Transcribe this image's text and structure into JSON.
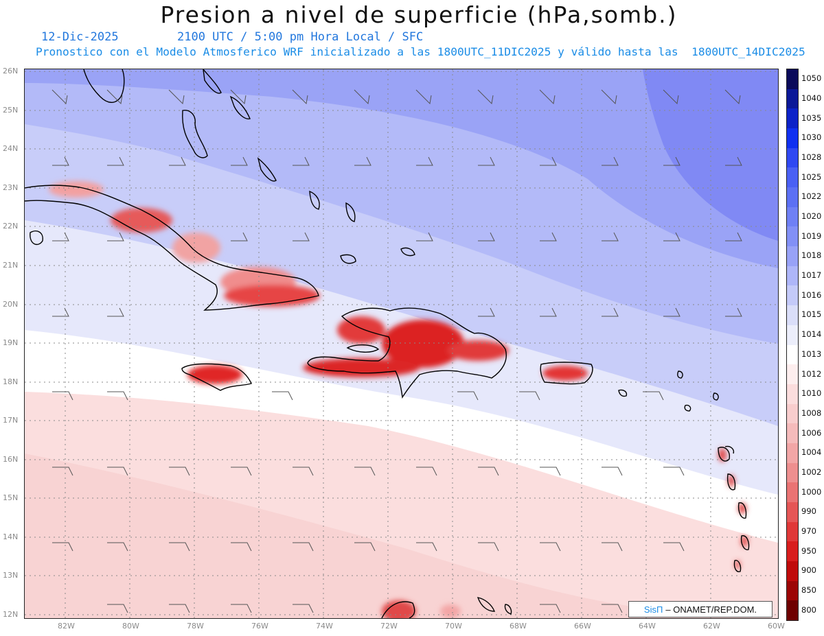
{
  "header": {
    "title": "Presion a nivel de superficie (hPa,somb.)",
    "date": "12-Dic-2025",
    "time": "2100 UTC / 5:00 pm Hora Local / SFC",
    "forecast_note": "Pronostico con el Modelo Atmosferico WRF inicializado a las 1800UTC_11DIC2025 y válido hasta las  1800UTC_14DIC2025"
  },
  "axes": {
    "lon_labels": [
      "82W",
      "80W",
      "78W",
      "76W",
      "74W",
      "72W",
      "70W",
      "68W",
      "66W",
      "64W",
      "62W",
      "60W"
    ],
    "lat_labels": [
      "26N",
      "25N",
      "24N",
      "23N",
      "22N",
      "21N",
      "20N",
      "19N",
      "18N",
      "17N",
      "16N",
      "15N",
      "14N",
      "13N",
      "12N"
    ],
    "lon_range": [
      -83.25,
      -60
    ],
    "lat_range": [
      11.9,
      26.1
    ]
  },
  "colorbar": {
    "levels": [
      "1050",
      "1040",
      "1035",
      "1030",
      "1028",
      "1025",
      "1022",
      "1020",
      "1019",
      "1018",
      "1017",
      "1016",
      "1015",
      "1014",
      "1013",
      "1012",
      "1010",
      "1008",
      "1006",
      "1004",
      "1002",
      "1000",
      "990",
      "970",
      "950",
      "900",
      "850",
      "800"
    ],
    "colors": [
      "#0a0a5a",
      "#0b1898",
      "#0c22c8",
      "#1030f0",
      "#2f48f2",
      "#4a60f4",
      "#5c70f4",
      "#6f80f5",
      "#8290f6",
      "#98a2f7",
      "#aeb6f9",
      "#c4caf9",
      "#dadef9",
      "#eceefb",
      "#ffffff",
      "#fdeeee",
      "#fbdddd",
      "#f8cdcd",
      "#f5bbbb",
      "#f2a6a6",
      "#ee8f8f",
      "#ea7373",
      "#e55656",
      "#e03838",
      "#d81d1d",
      "#c00b0b",
      "#9c0505",
      "#6e0000"
    ]
  },
  "credit": {
    "system": "SisΠ",
    "organization": "– ONAMET/REP.DOM."
  },
  "map_features": {
    "islands": [
      "Cuba",
      "Hispaniola",
      "Jamaica",
      "Puerto Rico",
      "Bahamas",
      "Lesser Antilles"
    ],
    "wind_barbs": "trade winds from the east"
  }
}
